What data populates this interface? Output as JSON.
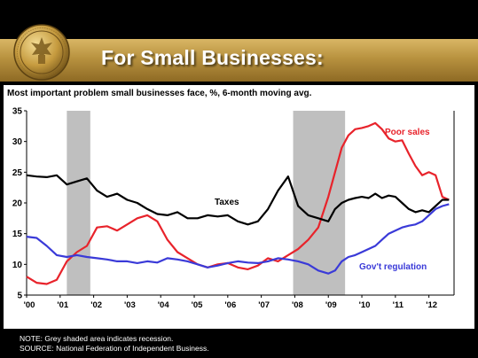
{
  "slide": {
    "title": "For Small Businesses:",
    "notes": [
      "NOTE: Grey shaded area indicates recession.",
      "SOURCE: National Federation of Independent Business."
    ]
  },
  "colors": {
    "background": "#000000",
    "banner_gold": "#b8923f",
    "recession_grey": "#bfbfbf",
    "poor_sales": "#e8232b",
    "taxes": "#000000",
    "govt_regulation": "#3a3ad8"
  },
  "chart_data": {
    "type": "line",
    "title": "Most important problem small businesses face, %, 6-month moving avg.",
    "xlabel": "",
    "ylabel": "",
    "xlim": [
      2000.0,
      2012.75
    ],
    "ylim": [
      5,
      35
    ],
    "y_ticks": [
      5,
      10,
      15,
      20,
      25,
      30,
      35
    ],
    "x_tick_labels": [
      "'00",
      "'01",
      "'02",
      "'03",
      "'04",
      "'05",
      "'06",
      "'07",
      "'08",
      "'09",
      "'10",
      "'11",
      "'12"
    ],
    "grid": false,
    "legend": "inline labels",
    "recessions": [
      [
        2001.2,
        2001.9
      ],
      [
        2007.95,
        2009.5
      ]
    ],
    "series": [
      {
        "name": "Poor sales",
        "x": [
          2000.0,
          2000.3,
          2000.6,
          2000.9,
          2001.2,
          2001.5,
          2001.8,
          2002.1,
          2002.4,
          2002.7,
          2003.0,
          2003.3,
          2003.6,
          2003.9,
          2004.2,
          2004.5,
          2004.8,
          2005.1,
          2005.4,
          2005.7,
          2006.0,
          2006.3,
          2006.6,
          2006.9,
          2007.2,
          2007.5,
          2007.8,
          2008.1,
          2008.4,
          2008.7,
          2009.0,
          2009.2,
          2009.4,
          2009.6,
          2009.8,
          2010.0,
          2010.2,
          2010.4,
          2010.6,
          2010.8,
          2011.0,
          2011.2,
          2011.4,
          2011.6,
          2011.8,
          2012.0,
          2012.2,
          2012.4,
          2012.6
        ],
        "values": [
          8,
          7,
          6.8,
          7.5,
          10.5,
          12,
          13,
          16,
          16.2,
          15.5,
          16.5,
          17.5,
          18,
          17,
          14,
          12,
          11,
          10,
          9.5,
          10,
          10.2,
          9.5,
          9.2,
          9.8,
          11,
          10.5,
          11.5,
          12.5,
          14,
          16,
          21,
          25,
          29,
          31,
          32,
          32.2,
          32.5,
          33,
          32,
          30.5,
          30,
          30.2,
          28,
          26,
          24.5,
          25,
          24.5,
          21,
          20.5
        ]
      },
      {
        "name": "Taxes",
        "x": [
          2000.0,
          2000.3,
          2000.6,
          2000.9,
          2001.2,
          2001.5,
          2001.8,
          2002.1,
          2002.4,
          2002.7,
          2003.0,
          2003.3,
          2003.6,
          2003.9,
          2004.2,
          2004.5,
          2004.8,
          2005.1,
          2005.4,
          2005.7,
          2006.0,
          2006.3,
          2006.6,
          2006.9,
          2007.2,
          2007.5,
          2007.8,
          2008.1,
          2008.4,
          2008.7,
          2009.0,
          2009.2,
          2009.4,
          2009.6,
          2009.8,
          2010.0,
          2010.2,
          2010.4,
          2010.6,
          2010.8,
          2011.0,
          2011.2,
          2011.4,
          2011.6,
          2011.8,
          2012.0,
          2012.2,
          2012.4,
          2012.6
        ],
        "values": [
          24.5,
          24.3,
          24.2,
          24.5,
          23,
          23.5,
          24,
          22,
          21,
          21.5,
          20.5,
          20,
          19,
          18.2,
          18,
          18.5,
          17.5,
          17.5,
          18,
          17.8,
          18,
          17,
          16.5,
          17,
          19,
          22,
          24.3,
          19.5,
          18,
          17.5,
          17,
          19,
          20,
          20.5,
          20.8,
          21,
          20.8,
          21.5,
          20.8,
          21.2,
          21,
          20,
          19,
          18.5,
          18.8,
          18.5,
          19.5,
          20.5,
          20.5
        ]
      },
      {
        "name": "Gov't regulation",
        "x": [
          2000.0,
          2000.3,
          2000.6,
          2000.9,
          2001.2,
          2001.5,
          2001.8,
          2002.1,
          2002.4,
          2002.7,
          2003.0,
          2003.3,
          2003.6,
          2003.9,
          2004.2,
          2004.5,
          2004.8,
          2005.1,
          2005.4,
          2005.7,
          2006.0,
          2006.3,
          2006.6,
          2006.9,
          2007.2,
          2007.5,
          2007.8,
          2008.1,
          2008.4,
          2008.7,
          2009.0,
          2009.2,
          2009.4,
          2009.6,
          2009.8,
          2010.0,
          2010.2,
          2010.4,
          2010.6,
          2010.8,
          2011.0,
          2011.2,
          2011.4,
          2011.6,
          2011.8,
          2012.0,
          2012.2,
          2012.4,
          2012.6
        ],
        "values": [
          14.5,
          14.3,
          13,
          11.5,
          11.2,
          11.5,
          11.2,
          11,
          10.8,
          10.5,
          10.5,
          10.2,
          10.5,
          10.3,
          11,
          10.8,
          10.5,
          10,
          9.5,
          9.8,
          10.2,
          10.5,
          10.3,
          10.2,
          10.5,
          11,
          10.8,
          10.5,
          10,
          9,
          8.5,
          9,
          10.5,
          11.2,
          11.5,
          12,
          12.5,
          13,
          14,
          15,
          15.5,
          16,
          16.3,
          16.5,
          17,
          18,
          19,
          19.5,
          19.8
        ]
      }
    ]
  }
}
